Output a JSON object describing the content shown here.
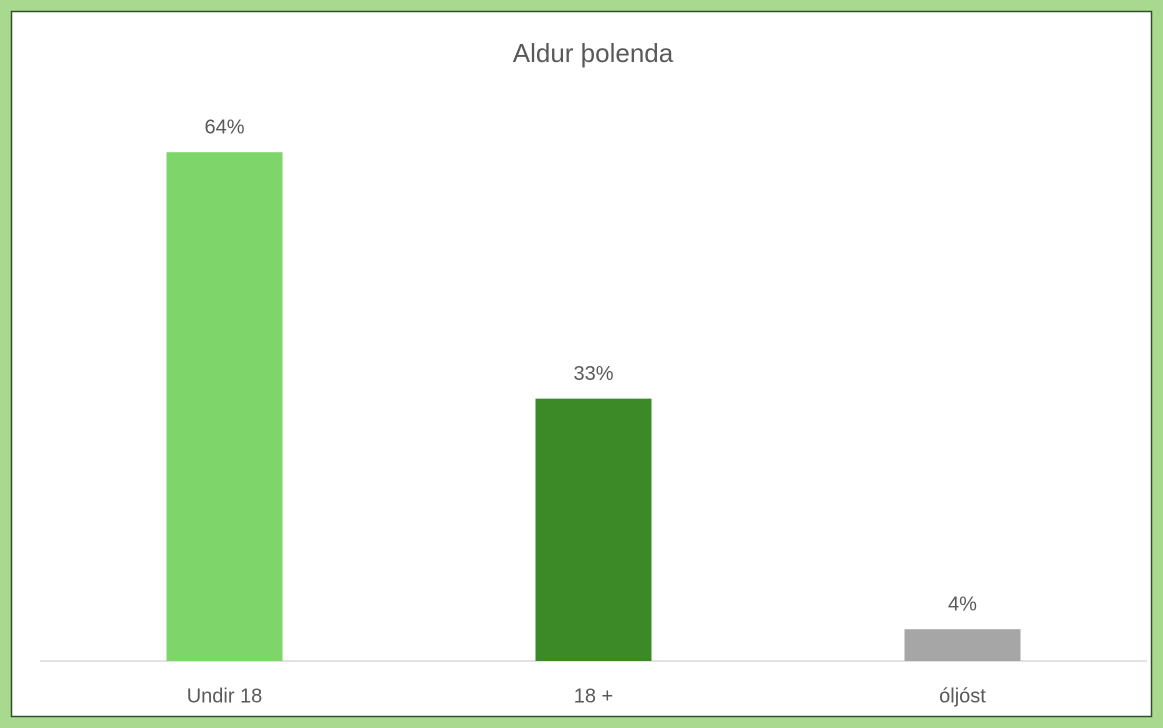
{
  "chart_data": {
    "type": "bar",
    "title": "Aldur þolenda",
    "categories": [
      "Undir 18",
      "18 +",
      "óljóst"
    ],
    "values": [
      64,
      33,
      4
    ],
    "value_labels": [
      "64%",
      "33%",
      "4%"
    ],
    "colors": [
      "#7ed56a",
      "#3b8a27",
      "#a6a6a6"
    ]
  }
}
